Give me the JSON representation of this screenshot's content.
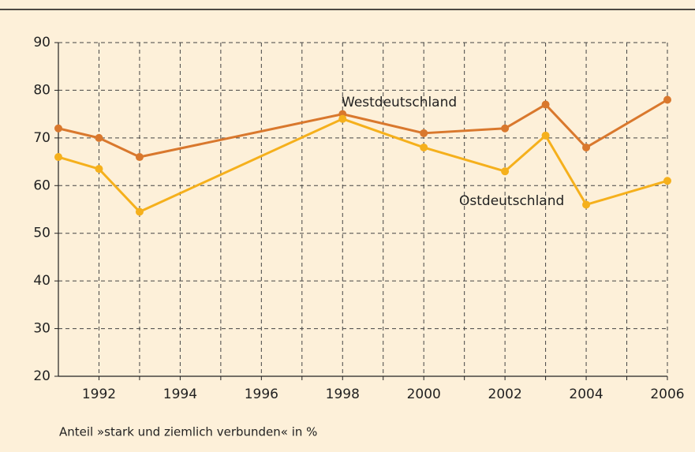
{
  "chart_data": {
    "type": "line",
    "x": [
      1991,
      1992,
      1993,
      1998,
      2000,
      2002,
      2003,
      2004,
      2006
    ],
    "series": [
      {
        "name": "Westdeutschland",
        "color": "#d9782d",
        "values": [
          72,
          70,
          66,
          75,
          71,
          72,
          77,
          68,
          78
        ]
      },
      {
        "name": "Ostdeutschland",
        "color": "#f5b01c",
        "values": [
          66,
          63.5,
          54.5,
          74,
          68,
          63,
          70.5,
          56,
          61
        ]
      }
    ],
    "xlim": [
      1991,
      2006
    ],
    "xticks": [
      1992,
      1994,
      1996,
      1998,
      2000,
      2002,
      2004,
      2006
    ],
    "xgrid": [
      1992,
      1993,
      1994,
      1995,
      1996,
      1997,
      1998,
      1999,
      2000,
      2001,
      2002,
      2003,
      2004,
      2005,
      2006
    ],
    "ylim": [
      20,
      90
    ],
    "yticks": [
      20,
      30,
      40,
      50,
      60,
      70,
      80,
      90
    ],
    "grid": true,
    "note": "Anteil »stark und ziemlich verbunden« in %"
  }
}
